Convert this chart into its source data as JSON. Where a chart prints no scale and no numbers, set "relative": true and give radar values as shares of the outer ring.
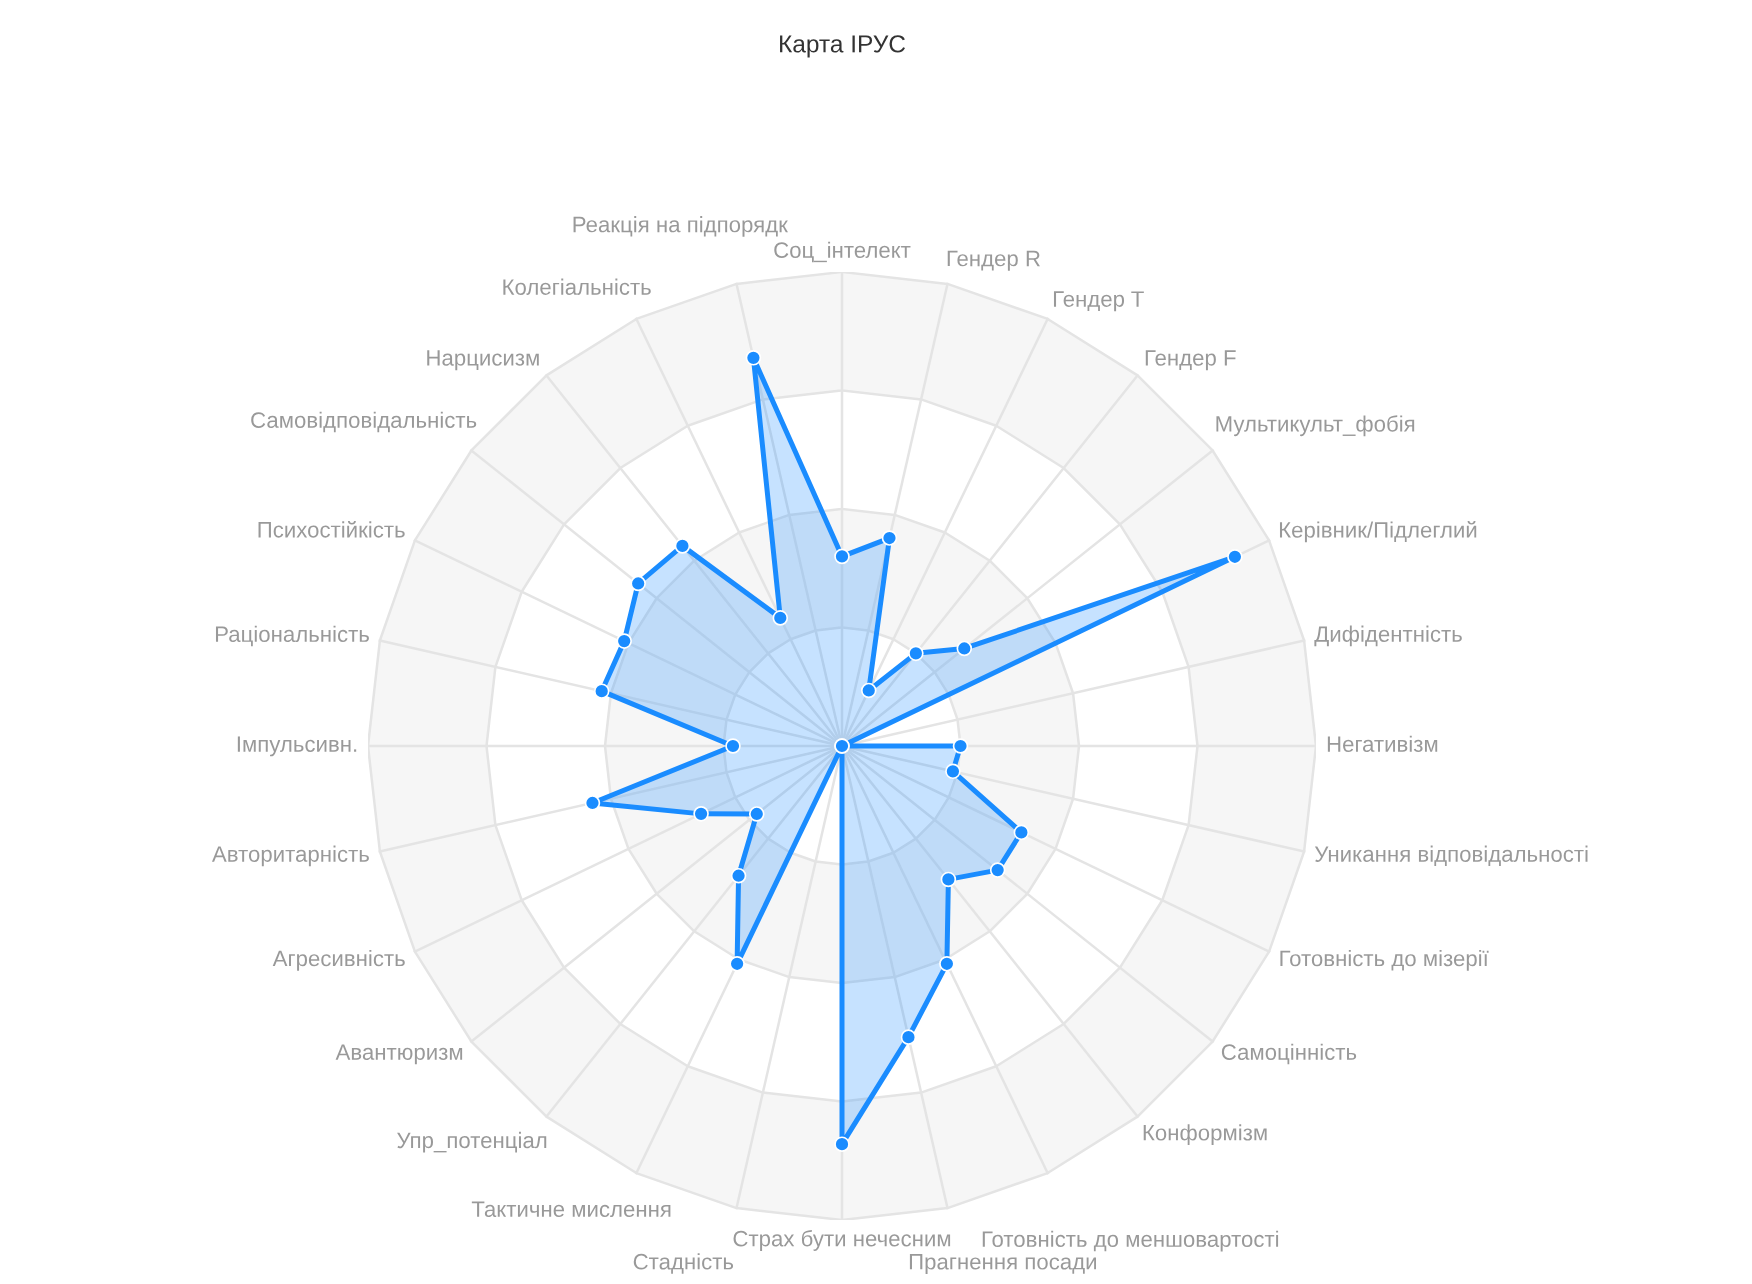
{
  "chart_data": {
    "type": "radar",
    "title": "Карта ІРУС",
    "categories": [
      "Соц_інтелект",
      "Гендер R",
      "Гендер T",
      "Гендер F",
      "Мультикульт_фобія",
      "Керівник/Підлеглий",
      "Дифідентність",
      "Негативізм",
      "Уникання відповідальності",
      "Готовність до мізерії",
      "Самоцінність",
      "Конформізм",
      "Готовність до меншовартості",
      "Прагнення посади",
      "Страх бути нечесним",
      "Стадність",
      "Тактичне мислення",
      "Упр_потенціал",
      "Авантюризм",
      "Агресивність",
      "Авторитарність",
      "Імпульсивн.",
      "Раціональність",
      "Психостійкість",
      "Самовідповідальність",
      "Нарцисизм",
      "Колегіальність",
      "Реакція на підпорядк"
    ],
    "series": [
      {
        "color": "#1a8cff",
        "values": [
          0.4,
          0.45,
          0.13,
          0.25,
          0.33,
          0.92,
          0,
          0.25,
          0.24,
          0.42,
          0.42,
          0.36,
          0.51,
          0.63,
          0.84,
          0,
          0.51,
          0.35,
          0.23,
          0.33,
          0.54,
          0.23,
          0.52,
          0.51,
          0.55,
          0.54,
          0.3,
          0.84
        ]
      }
    ],
    "relative": true,
    "grid": true,
    "marker": "circle",
    "line_style": "solid"
  }
}
